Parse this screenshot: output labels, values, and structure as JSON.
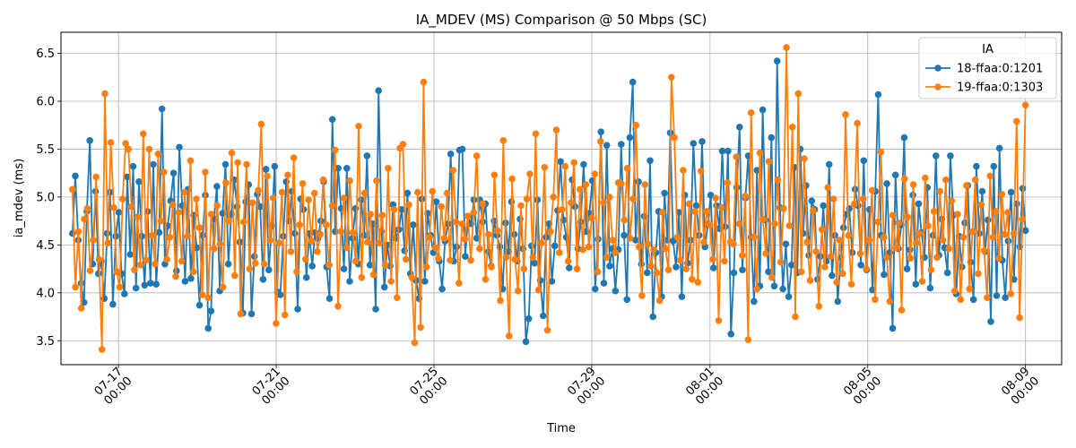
{
  "chart_data": {
    "type": "line",
    "title": "IA_MDEV (MS) Comparison @ 50 Mbps (SC)",
    "xlabel": "Time",
    "ylabel": "ia_mdev (ms)",
    "x_axis": "datetime",
    "xlim": [
      "2024-07-15 13:00",
      "2024-08-09 22:00"
    ],
    "ylim": [
      3.25,
      6.72
    ],
    "y_ticks": [
      3.5,
      4.0,
      4.5,
      5.0,
      5.5,
      6.0,
      6.5
    ],
    "x_ticks": [
      {
        "value": "2024-07-17 00:00",
        "label_line1": "07-17",
        "label_line2": "00:00"
      },
      {
        "value": "2024-07-21 00:00",
        "label_line1": "07-21",
        "label_line2": "00:00"
      },
      {
        "value": "2024-07-25 00:00",
        "label_line1": "07-25",
        "label_line2": "00:00"
      },
      {
        "value": "2024-07-29 00:00",
        "label_line1": "07-29",
        "label_line2": "00:00"
      },
      {
        "value": "2024-08-01 00:00",
        "label_line1": "08-01",
        "label_line2": "00:00"
      },
      {
        "value": "2024-08-05 00:00",
        "label_line1": "08-05",
        "label_line2": "00:00"
      },
      {
        "value": "2024-08-09 00:00",
        "label_line1": "08-09",
        "label_line2": "00:00"
      }
    ],
    "grid": true,
    "legend": {
      "position": "top-right",
      "title": "IA"
    },
    "x_start": "2024-07-15 20:00",
    "x_end": "2024-08-09 00:00",
    "series": [
      {
        "name": "18-ffaa:0:1201",
        "color": "#1f77b4",
        "values": [
          4.62,
          5.22,
          4.55,
          4.1,
          3.9,
          4.85,
          5.59,
          4.3,
          5.06,
          4.2,
          4.33,
          3.94,
          4.62,
          5.05,
          3.88,
          4.59,
          4.84,
          4.2,
          3.99,
          5.21,
          4.4,
          5.32,
          4.05,
          5.16,
          4.59,
          4.08,
          4.85,
          4.1,
          5.34,
          4.09,
          4.63,
          5.92,
          4.3,
          4.7,
          4.96,
          5.25,
          4.23,
          5.52,
          4.91,
          4.12,
          5.08,
          4.15,
          4.81,
          4.47,
          3.87,
          4.6,
          5.02,
          3.63,
          3.81,
          4.77,
          5.11,
          4.02,
          4.83,
          5.34,
          4.3,
          4.82,
          5.18,
          4.9,
          4.53,
          3.79,
          4.95,
          5.13,
          3.78,
          4.38,
          5.03,
          4.9,
          4.14,
          5.29,
          4.24,
          4.7,
          5.32,
          4.01,
          3.98,
          4.59,
          5.16,
          4.75,
          5.06,
          4.62,
          3.83,
          4.98,
          4.87,
          4.16,
          4.62,
          4.28,
          4.63,
          4.57,
          4.75,
          5.16,
          4.27,
          3.94,
          5.81,
          4.64,
          5.3,
          4.88,
          4.25,
          5.3,
          4.12,
          4.57,
          4.88,
          4.3,
          4.97,
          4.6,
          5.43,
          4.29,
          4.72,
          3.83,
          6.11,
          4.64,
          4.06,
          4.5,
          4.28,
          4.92,
          4.57,
          4.66,
          4.87,
          4.44,
          5.04,
          4.2,
          4.71,
          4.13,
          3.94,
          4.98,
          4.12,
          4.83,
          4.6,
          4.42,
          4.95,
          4.33,
          4.04,
          4.54,
          4.72,
          5.45,
          4.33,
          4.48,
          5.49,
          5.5,
          4.38,
          4.8,
          4.72,
          4.97,
          4.57,
          4.97,
          4.74,
          4.93,
          4.43,
          4.28,
          4.75,
          4.6,
          4.48,
          4.04,
          4.73,
          4.43,
          4.95,
          4.61,
          4.33,
          4.77,
          4.46,
          3.49,
          3.73,
          4.49,
          4.31,
          4.97,
          4.13,
          3.76,
          4.58,
          4.72,
          4.12,
          4.49,
          4.86,
          5.37,
          4.76,
          4.58,
          4.26,
          5.18,
          4.9,
          4.46,
          4.74,
          5.34,
          4.64,
          4.83,
          5.17,
          4.04,
          4.56,
          5.68,
          4.1,
          5.54,
          4.28,
          4.46,
          4.02,
          4.45,
          5.55,
          4.6,
          3.93,
          5.62,
          6.2,
          4.55,
          5.16,
          4.3,
          4.8,
          4.21,
          5.38,
          3.75,
          4.42,
          4.85,
          3.96,
          5.04,
          4.55,
          5.67,
          4.54,
          4.27,
          4.84,
          3.96,
          5.02,
          4.31,
          4.55,
          5.56,
          4.91,
          4.6,
          5.58,
          4.48,
          4.71,
          5.02,
          4.26,
          4.91,
          4.67,
          5.48,
          4.69,
          5.48,
          3.57,
          4.21,
          5.1,
          5.73,
          4.24,
          4.99,
          5.43,
          4.58,
          3.91,
          5.28,
          4.07,
          5.91,
          4.76,
          4.22,
          5.62,
          4.07,
          6.42,
          4.89,
          4.04,
          4.51,
          3.96,
          4.29,
          5.31,
          4.21,
          5.5,
          4.62,
          5.12,
          4.39,
          4.96,
          4.87,
          4.14,
          4.38,
          4.91,
          4.33,
          5.34,
          4.18,
          4.6,
          3.91,
          4.37,
          4.68,
          4.82,
          4.88,
          4.42,
          5.08,
          4.91,
          4.29,
          5.38,
          4.24,
          4.87,
          4.03,
          5.06,
          6.07,
          4.6,
          4.19,
          5.14,
          4.42,
          3.63,
          5.23,
          4.46,
          4.71,
          5.62,
          4.25,
          4.45,
          5.02,
          4.09,
          4.93,
          4.63,
          4.37,
          5.1,
          4.05,
          4.6,
          5.43,
          4.39,
          4.77,
          4.47,
          4.21,
          5.43,
          4.81,
          3.99,
          4.59,
          4.27,
          4.73,
          5.12,
          4.32,
          3.93,
          5.32,
          4.62,
          5.06,
          4.43,
          4.76,
          3.7,
          5.32,
          3.97,
          5.51,
          4.34,
          3.95,
          4.54,
          5.05,
          4.14,
          4.93,
          4.48,
          5.09,
          4.65
        ]
      },
      {
        "name": "19-ffaa:0:1303",
        "color": "#ff7f0e",
        "values": [
          5.08,
          4.06,
          4.64,
          3.84,
          4.77,
          4.88,
          4.23,
          4.55,
          5.21,
          4.35,
          3.41,
          6.08,
          4.52,
          5.57,
          4.89,
          4.22,
          4.06,
          4.98,
          5.56,
          5.5,
          4.9,
          4.24,
          4.79,
          4.29,
          5.66,
          4.34,
          5.5,
          4.6,
          4.3,
          5.45,
          4.75,
          5.26,
          4.35,
          4.58,
          4.92,
          4.17,
          4.84,
          4.33,
          5.05,
          4.59,
          5.38,
          4.22,
          4.98,
          4.68,
          3.98,
          5.26,
          3.95,
          4.82,
          4.46,
          4.91,
          4.51,
          4.06,
          5.15,
          4.75,
          5.46,
          4.18,
          5.36,
          3.78,
          4.74,
          5.34,
          4.25,
          4.94,
          4.31,
          5.07,
          5.76,
          4.3,
          5.22,
          4.55,
          4.99,
          3.68,
          4.52,
          5.05,
          3.77,
          5.23,
          4.43,
          5.41,
          4.22,
          4.71,
          5.14,
          4.35,
          4.97,
          4.54,
          5.04,
          4.43,
          4.61,
          5.18,
          4.71,
          4.29,
          4.91,
          5.49,
          3.86,
          4.64,
          4.99,
          4.47,
          5.17,
          4.63,
          4.33,
          5.74,
          4.16,
          5.04,
          4.53,
          4.82,
          4.19,
          5.17,
          4.52,
          4.81,
          4.29,
          5.3,
          4.12,
          4.87,
          3.95,
          5.51,
          5.55,
          4.35,
          4.92,
          4.16,
          3.48,
          5.05,
          3.64,
          6.2,
          4.27,
          4.58,
          5.06,
          4.47,
          4.36,
          4.9,
          4.57,
          5.04,
          4.34,
          5.28,
          4.74,
          4.1,
          4.72,
          4.56,
          4.8,
          4.34,
          4.84,
          5.43,
          4.46,
          4.93,
          4.14,
          4.61,
          4.27,
          5.23,
          4.65,
          3.92,
          5.59,
          4.37,
          3.55,
          5.19,
          4.35,
          4.02,
          4.91,
          4.25,
          4.98,
          5.24,
          4.37,
          5.66,
          4.03,
          4.52,
          5.31,
          3.61,
          4.64,
          5.0,
          5.7,
          4.42,
          4.87,
          5.32,
          4.33,
          4.94,
          5.36,
          4.25,
          5.08,
          4.45,
          5.13,
          4.48,
          4.78,
          5.24,
          4.22,
          5.58,
          4.94,
          4.37,
          5.0,
          4.55,
          4.42,
          5.15,
          5.14,
          4.76,
          5.3,
          4.57,
          4.98,
          5.75,
          4.48,
          3.97,
          5.13,
          4.51,
          4.28,
          4.45,
          4.21,
          3.92,
          4.84,
          4.46,
          4.24,
          6.25,
          5.62,
          4.58,
          4.34,
          5.28,
          4.25,
          4.93,
          4.14,
          4.85,
          4.11,
          5.27,
          4.53,
          4.85,
          4.71,
          4.35,
          4.99,
          3.71,
          4.89,
          4.33,
          5.15,
          4.53,
          4.51,
          5.42,
          4.72,
          4.39,
          5.01,
          3.51,
          5.88,
          4.58,
          4.04,
          5.46,
          4.77,
          4.41,
          5.37,
          4.16,
          4.72,
          5.18,
          4.32,
          4.88,
          6.56,
          4.7,
          5.73,
          3.75,
          6.08,
          4.22,
          5.4,
          4.53,
          4.13,
          4.86,
          4.43,
          3.86,
          4.66,
          4.27,
          5.1,
          4.38,
          4.98,
          4.11,
          4.55,
          4.2,
          5.86,
          4.6,
          4.09,
          4.93,
          5.77,
          4.41,
          4.98,
          4.25,
          4.55,
          5.07,
          3.93,
          4.74,
          5.47,
          4.58,
          4.37,
          3.91,
          4.81,
          4.47,
          4.73,
          3.82,
          5.19,
          4.79,
          4.36,
          5.13,
          4.52,
          4.62,
          4.12,
          5.2,
          4.7,
          4.24,
          4.85,
          4.37,
          5.06,
          4.55,
          5.18,
          4.46,
          4.96,
          4.02,
          4.82,
          3.93,
          4.58,
          5.12,
          4.04,
          4.64,
          5.18,
          4.2,
          4.92,
          4.44,
          3.95,
          5.22,
          4.58,
          4.85,
          4.36,
          5.03,
          4.61,
          4.84,
          3.99,
          4.62,
          5.79,
          3.74,
          4.77,
          5.96
        ]
      }
    ]
  }
}
